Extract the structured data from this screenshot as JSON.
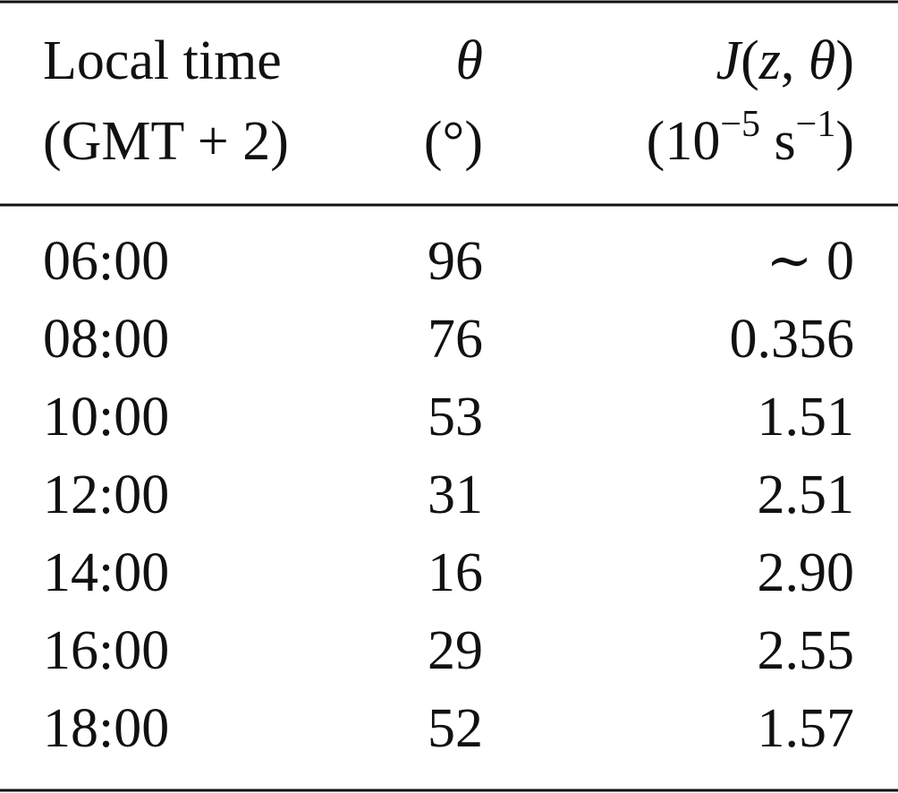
{
  "table": {
    "header": {
      "local_time": [
        "Local time",
        "(GMT + 2)"
      ],
      "theta": [
        "θ",
        "(°)"
      ],
      "j": [
        [
          "J",
          "(",
          "z",
          ", ",
          "θ",
          ")"
        ],
        [
          "(10",
          "−5",
          " s",
          "−1",
          ")"
        ]
      ]
    },
    "rows": [
      [
        "06:00",
        "96",
        "∼ 0"
      ],
      [
        "08:00",
        "76",
        "0.356"
      ],
      [
        "10:00",
        "53",
        "1.51"
      ],
      [
        "12:00",
        "31",
        "2.51"
      ],
      [
        "14:00",
        "16",
        "2.90"
      ],
      [
        "16:00",
        "29",
        "2.55"
      ],
      [
        "18:00",
        "52",
        "1.57"
      ]
    ]
  }
}
